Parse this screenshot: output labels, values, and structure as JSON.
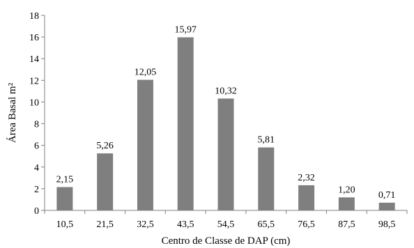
{
  "chart_data": {
    "type": "bar",
    "title": "",
    "xlabel": "Centro de Classe de DAP (cm)",
    "ylabel": "Área Basal m²",
    "categories": [
      "10,5",
      "21,5",
      "32,5",
      "43,5",
      "54,5",
      "65,5",
      "76,5",
      "87,5",
      "98,5"
    ],
    "values": [
      2.15,
      5.26,
      12.05,
      15.97,
      10.32,
      5.81,
      2.32,
      1.2,
      0.71
    ],
    "value_labels": [
      "2,15",
      "5,26",
      "12,05",
      "15,97",
      "10,32",
      "5,81",
      "2,32",
      "1,20",
      "0,71"
    ],
    "ylim": [
      0,
      18
    ],
    "yticks": [
      0,
      2,
      4,
      6,
      8,
      10,
      12,
      14,
      16,
      18
    ],
    "grid": false,
    "legend": "none",
    "bar_color": "#7f7f7f"
  }
}
